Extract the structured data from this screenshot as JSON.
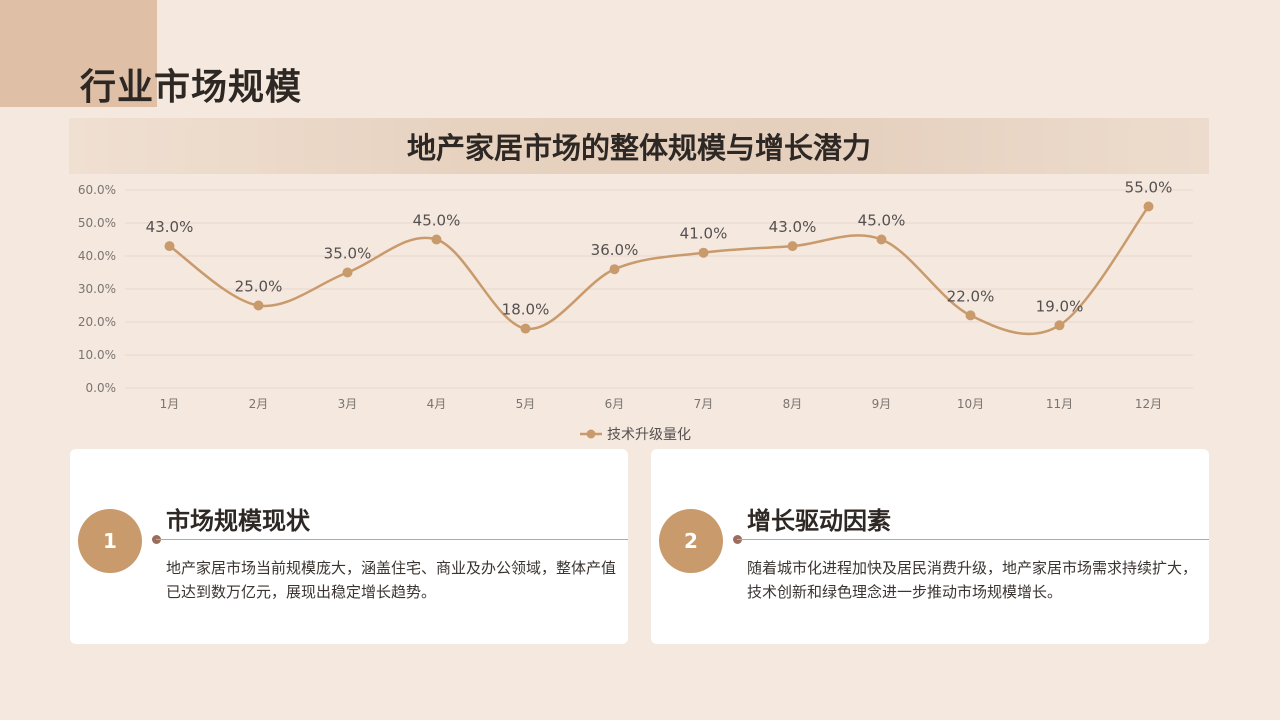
{
  "page": {
    "title": "行业市场规模"
  },
  "colors": {
    "accent": "#c99a6c",
    "line": "#c99a6c",
    "background": "#f5e9df"
  },
  "chart_data": {
    "type": "line",
    "title": "地产家居市场的整体规模与增长潜力",
    "categories": [
      "1月",
      "2月",
      "3月",
      "4月",
      "5月",
      "6月",
      "7月",
      "8月",
      "9月",
      "10月",
      "11月",
      "12月"
    ],
    "series": [
      {
        "name": "技术升级量化",
        "values": [
          43.0,
          25.0,
          35.0,
          45.0,
          18.0,
          36.0,
          41.0,
          43.0,
          45.0,
          22.0,
          19.0,
          55.0
        ]
      }
    ],
    "value_labels": [
      "43.0%",
      "25.0%",
      "35.0%",
      "45.0%",
      "18.0%",
      "36.0%",
      "41.0%",
      "43.0%",
      "45.0%",
      "22.0%",
      "19.0%",
      "55.0%"
    ],
    "y_ticks": [
      "0.0%",
      "10.0%",
      "20.0%",
      "30.0%",
      "40.0%",
      "50.0%",
      "60.0%"
    ],
    "ylim": [
      0,
      60
    ],
    "smooth": true,
    "grid": true,
    "legend_position": "bottom-center"
  },
  "cards": [
    {
      "number": "1",
      "heading": "市场规模现状",
      "body": "地产家居市场当前规模庞大，涵盖住宅、商业及办公领域，整体产值已达到数万亿元，展现出稳定增长趋势。"
    },
    {
      "number": "2",
      "heading": "增长驱动因素",
      "body": "随着城市化进程加快及居民消费升级，地产家居市场需求持续扩大，技术创新和绿色理念进一步推动市场规模增长。"
    }
  ]
}
